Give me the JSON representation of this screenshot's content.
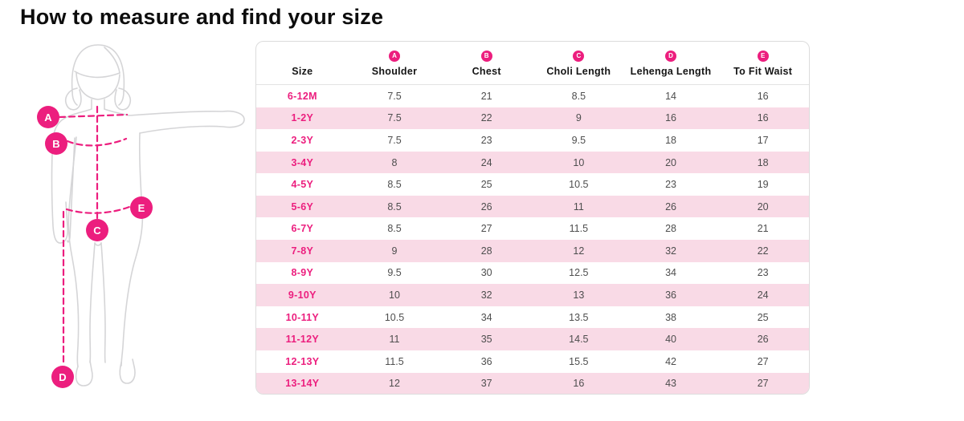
{
  "page": {
    "title": "How to measure and find your size"
  },
  "colors": {
    "accent": "#ec1e7e",
    "stripe": "#f9dae6",
    "figure": "#d5d5d7",
    "border": "#dcdcdc"
  },
  "diagram": {
    "markers": [
      "A",
      "B",
      "C",
      "D",
      "E"
    ]
  },
  "table": {
    "columns": [
      {
        "key": "size",
        "label": "Size",
        "marker": ""
      },
      {
        "key": "shoulder",
        "label": "Shoulder",
        "marker": "A"
      },
      {
        "key": "chest",
        "label": "Chest",
        "marker": "B"
      },
      {
        "key": "choli",
        "label": "Choli Length",
        "marker": "C"
      },
      {
        "key": "lehenga",
        "label": "Lehenga Length",
        "marker": "D"
      },
      {
        "key": "waist",
        "label": "To Fit Waist",
        "marker": "E"
      }
    ],
    "rows": [
      [
        "6-12M",
        "7.5",
        "21",
        "8.5",
        "14",
        "16"
      ],
      [
        "1-2Y",
        "7.5",
        "22",
        "9",
        "16",
        "16"
      ],
      [
        "2-3Y",
        "7.5",
        "23",
        "9.5",
        "18",
        "17"
      ],
      [
        "3-4Y",
        "8",
        "24",
        "10",
        "20",
        "18"
      ],
      [
        "4-5Y",
        "8.5",
        "25",
        "10.5",
        "23",
        "19"
      ],
      [
        "5-6Y",
        "8.5",
        "26",
        "11",
        "26",
        "20"
      ],
      [
        "6-7Y",
        "8.5",
        "27",
        "11.5",
        "28",
        "21"
      ],
      [
        "7-8Y",
        "9",
        "28",
        "12",
        "32",
        "22"
      ],
      [
        "8-9Y",
        "9.5",
        "30",
        "12.5",
        "34",
        "23"
      ],
      [
        "9-10Y",
        "10",
        "32",
        "13",
        "36",
        "24"
      ],
      [
        "10-11Y",
        "10.5",
        "34",
        "13.5",
        "38",
        "25"
      ],
      [
        "11-12Y",
        "11",
        "35",
        "14.5",
        "40",
        "26"
      ],
      [
        "12-13Y",
        "11.5",
        "36",
        "15.5",
        "42",
        "27"
      ],
      [
        "13-14Y",
        "12",
        "37",
        "16",
        "43",
        "27"
      ]
    ]
  }
}
